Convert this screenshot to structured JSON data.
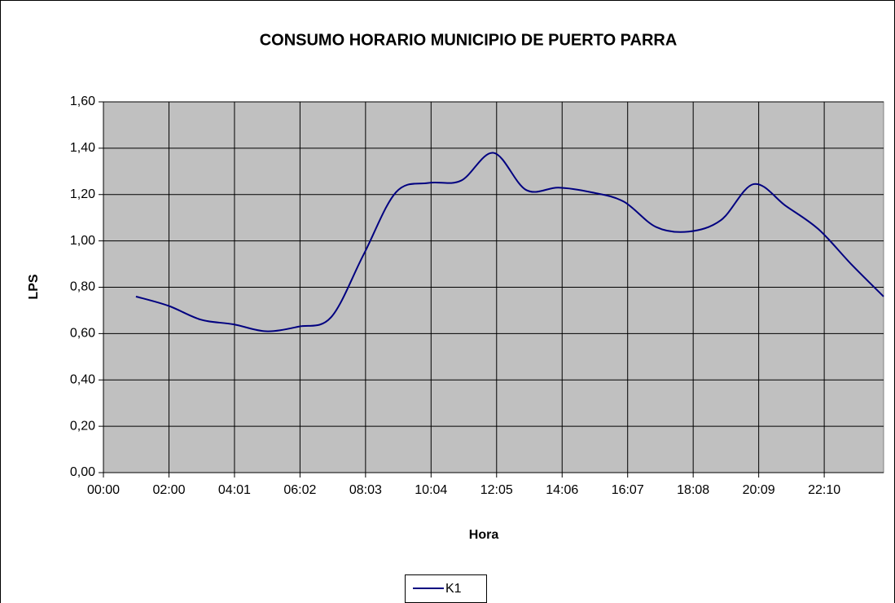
{
  "chart_data": {
    "type": "line",
    "title": "CONSUMO HORARIO MUNICIPIO DE PUERTO PARRA",
    "x_label": "Hora",
    "y_label": "LPS",
    "x": [
      1,
      2,
      3,
      4,
      5,
      6,
      7,
      8,
      9,
      10,
      11,
      12,
      13,
      14,
      15,
      16,
      17,
      18,
      19,
      20,
      21,
      22,
      23,
      24
    ],
    "series": [
      {
        "name": "K1",
        "color": "#000080",
        "values": [
          0.76,
          0.72,
          0.66,
          0.64,
          0.61,
          0.63,
          0.67,
          0.94,
          1.21,
          1.25,
          1.26,
          1.38,
          1.22,
          1.23,
          1.21,
          1.17,
          1.06,
          1.04,
          1.09,
          1.245,
          1.15,
          1.05,
          0.9,
          0.76
        ]
      }
    ],
    "xlim": [
      0,
      24
    ],
    "xticks": [
      {
        "value": 0,
        "label": "00:00"
      },
      {
        "value": 2.0158,
        "label": "02:00"
      },
      {
        "value": 4.0316,
        "label": "04:01"
      },
      {
        "value": 6.0474,
        "label": "06:02"
      },
      {
        "value": 8.0632,
        "label": "08:03"
      },
      {
        "value": 10.079,
        "label": "10:04"
      },
      {
        "value": 12.0948,
        "label": "12:05"
      },
      {
        "value": 14.1106,
        "label": "14:06"
      },
      {
        "value": 16.1264,
        "label": "16:07"
      },
      {
        "value": 18.1422,
        "label": "18:08"
      },
      {
        "value": 20.158,
        "label": "20:09"
      },
      {
        "value": 22.1738,
        "label": "22:10"
      }
    ],
    "ylim": [
      0,
      1.6
    ],
    "yticks": [
      {
        "value": 0,
        "label": "0,00"
      },
      {
        "value": 0.2,
        "label": "0,20"
      },
      {
        "value": 0.4,
        "label": "0,40"
      },
      {
        "value": 0.6,
        "label": "0,60"
      },
      {
        "value": 0.8,
        "label": "0,80"
      },
      {
        "value": 1.0,
        "label": "1,00"
      },
      {
        "value": 1.2,
        "label": "1,20"
      },
      {
        "value": 1.4,
        "label": "1,40"
      },
      {
        "value": 1.6,
        "label": "1,60"
      }
    ],
    "grid": true,
    "legend": "bottom"
  }
}
